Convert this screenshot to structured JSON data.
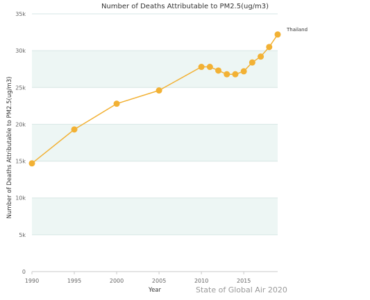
{
  "chart_data": {
    "type": "line",
    "title": "Number of Deaths Attributable to PM2.5(ug/m3)",
    "xlabel": "Year",
    "ylabel": "Number of Deaths Attributable to PM2.5(ug/m3)",
    "xlim": [
      1990,
      2019
    ],
    "ylim": [
      0,
      35000
    ],
    "x_ticks": [
      "1990",
      "1995",
      "2000",
      "2005",
      "2010",
      "2015"
    ],
    "y_ticks": [
      "0",
      "5k",
      "10k",
      "15k",
      "20k",
      "25k",
      "30k",
      "35k"
    ],
    "grid": true,
    "series": [
      {
        "name": "Thailand",
        "color": "#f2b134",
        "x": [
          1990,
          1995,
          2000,
          2005,
          2010,
          2011,
          2012,
          2013,
          2014,
          2015,
          2016,
          2017,
          2018,
          2019
        ],
        "y": [
          14700,
          19300,
          22800,
          24600,
          27800,
          27800,
          27300,
          26800,
          26800,
          27200,
          28400,
          29200,
          30500,
          32200
        ]
      }
    ],
    "credit": "State of Global Air 2020",
    "band_color": "#edf6f4",
    "grid_color": "#d6e6e4"
  }
}
